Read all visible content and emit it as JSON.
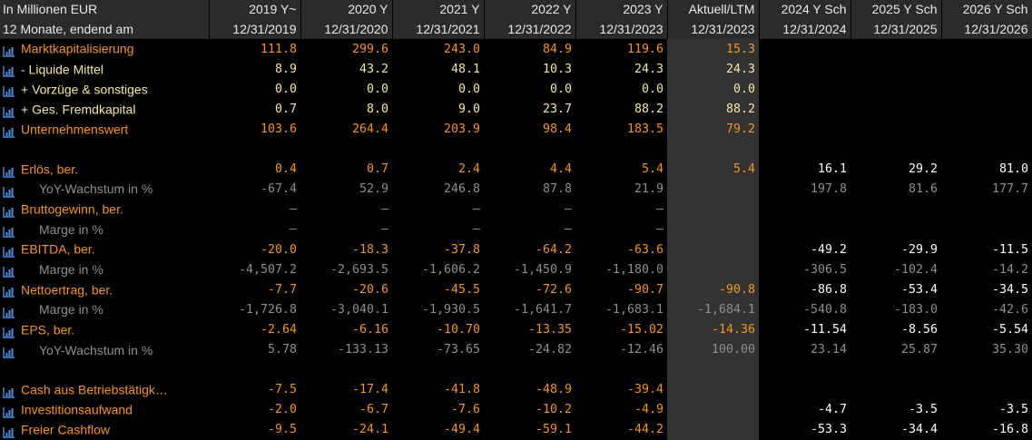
{
  "header": {
    "unit_label": "In Millionen EUR",
    "period_label": "12 Monate, endend am",
    "columns": [
      {
        "title": "2019 Y~",
        "date": "12/31/2019"
      },
      {
        "title": "2020 Y",
        "date": "12/31/2020"
      },
      {
        "title": "2021 Y",
        "date": "12/31/2021"
      },
      {
        "title": "2022 Y",
        "date": "12/31/2022"
      },
      {
        "title": "2023 Y",
        "date": "12/31/2023"
      },
      {
        "title": "Aktuell/LTM",
        "date": "12/31/2023"
      },
      {
        "title": "2024 Y Sch",
        "date": "12/31/2024"
      },
      {
        "title": "2025 Y Sch",
        "date": "12/31/2025"
      },
      {
        "title": "2026 Y Sch",
        "date": "12/31/2026"
      }
    ]
  },
  "colors": {
    "orange": "#f7941d",
    "yellow": "#f5e6a6",
    "white": "#ffffff",
    "grey": "#8f8f8f",
    "icon_blue": "#4a90e2"
  },
  "rows": [
    {
      "label": "Marktkapitalisierung",
      "style": "orange",
      "icon": "bar-chart-icon",
      "values": [
        "111.8",
        "299.6",
        "243.0",
        "84.9",
        "119.6",
        "15.3",
        "",
        "",
        ""
      ],
      "value_style": "orange"
    },
    {
      "label": "- Liquide Mittel",
      "style": "yellow",
      "icon": "bar-chart-icon",
      "values": [
        "8.9",
        "43.2",
        "48.1",
        "10.3",
        "24.3",
        "24.3",
        "",
        "",
        ""
      ],
      "value_style": "yellow"
    },
    {
      "label": "+ Vorzüge & sonstiges",
      "style": "yellow",
      "icon": "bar-chart-icon",
      "values": [
        "0.0",
        "0.0",
        "0.0",
        "0.0",
        "0.0",
        "0.0",
        "",
        "",
        ""
      ],
      "value_style": "yellow"
    },
    {
      "label": "+ Ges. Fremdkapital",
      "style": "yellow",
      "icon": "bar-chart-icon",
      "values": [
        "0.7",
        "8.0",
        "9.0",
        "23.7",
        "88.2",
        "88.2",
        "",
        "",
        ""
      ],
      "value_style": "yellow"
    },
    {
      "label": "Unternehmenswert",
      "style": "orange",
      "icon": "bar-chart-icon",
      "values": [
        "103.6",
        "264.4",
        "203.9",
        "98.4",
        "183.5",
        "79.2",
        "",
        "",
        ""
      ],
      "value_style": "orange"
    },
    {
      "blank": true
    },
    {
      "label": "Erlös, ber.",
      "style": "orange",
      "icon": "bar-chart-icon",
      "values": [
        "0.4",
        "0.7",
        "2.4",
        "4.4",
        "5.4",
        "5.4",
        "16.1",
        "29.2",
        "81.0"
      ],
      "value_style": "orange",
      "fc_style": "white"
    },
    {
      "label": "YoY-Wachstum in %",
      "style": "grey",
      "icon": "bar-chart-icon",
      "values": [
        "-67.4",
        "52.9",
        "246.8",
        "87.8",
        "21.9",
        "",
        "197.8",
        "81.6",
        "177.7"
      ],
      "value_style": "grey"
    },
    {
      "label": "Bruttogewinn, ber.",
      "style": "orange",
      "icon": "bar-chart-icon",
      "values": [
        "–",
        "–",
        "–",
        "–",
        "–",
        "",
        "",
        "",
        ""
      ],
      "value_style": "grey"
    },
    {
      "label": "Marge in %",
      "style": "grey",
      "icon": "bar-chart-icon",
      "values": [
        "–",
        "–",
        "–",
        "–",
        "–",
        "",
        "",
        "",
        ""
      ],
      "value_style": "grey"
    },
    {
      "label": "EBITDA, ber.",
      "style": "orange",
      "icon": "bar-chart-icon",
      "values": [
        "-20.0",
        "-18.3",
        "-37.8",
        "-64.2",
        "-63.6",
        "",
        "-49.2",
        "-29.9",
        "-11.5"
      ],
      "value_style": "orange",
      "fc_style": "white"
    },
    {
      "label": "Marge in %",
      "style": "grey",
      "icon": "bar-chart-icon",
      "values": [
        "-4,507.2",
        "-2,693.5",
        "-1,606.2",
        "-1,450.9",
        "-1,180.0",
        "",
        "-306.5",
        "-102.4",
        "-14.2"
      ],
      "value_style": "grey"
    },
    {
      "label": "Nettoertrag, ber.",
      "style": "orange",
      "icon": "bar-chart-icon",
      "values": [
        "-7.7",
        "-20.6",
        "-45.5",
        "-72.6",
        "-90.7",
        "-90.8",
        "-86.8",
        "-53.4",
        "-34.5"
      ],
      "value_style": "orange",
      "fc_style": "white"
    },
    {
      "label": "Marge in %",
      "style": "grey",
      "icon": "bar-chart-icon",
      "values": [
        "-1,726.8",
        "-3,040.1",
        "-1,930.5",
        "-1,641.7",
        "-1,683.1",
        "-1,684.1",
        "-540.8",
        "-183.0",
        "-42.6"
      ],
      "value_style": "grey"
    },
    {
      "label": "EPS, ber.",
      "style": "orange",
      "icon": "bar-chart-icon",
      "values": [
        "-2.64",
        "-6.16",
        "-10.70",
        "-13.35",
        "-15.02",
        "-14.36",
        "-11.54",
        "-8.56",
        "-5.54"
      ],
      "value_style": "orange",
      "fc_style": "white"
    },
    {
      "label": "YoY-Wachstum in %",
      "style": "grey",
      "icon": "bar-chart-icon",
      "values": [
        "5.78",
        "-133.13",
        "-73.65",
        "-24.82",
        "-12.46",
        "100.00",
        "23.14",
        "25.87",
        "35.30"
      ],
      "value_style": "grey"
    },
    {
      "blank": true
    },
    {
      "label": "Cash aus Betriebstätigk…",
      "style": "orange",
      "icon": "bar-chart-icon",
      "values": [
        "-7.5",
        "-17.4",
        "-41.8",
        "-48.9",
        "-39.4",
        "",
        "",
        "",
        ""
      ],
      "value_style": "orange"
    },
    {
      "label": "Investitionsaufwand",
      "style": "orange",
      "icon": "bar-chart-icon",
      "values": [
        "-2.0",
        "-6.7",
        "-7.6",
        "-10.2",
        "-4.9",
        "",
        "-4.7",
        "-3.5",
        "-3.5"
      ],
      "value_style": "orange",
      "fc_style": "white"
    },
    {
      "label": "Freier Cashflow",
      "style": "orange",
      "icon": "bar-chart-icon",
      "values": [
        "-9.5",
        "-24.1",
        "-49.4",
        "-59.1",
        "-44.2",
        "",
        "-53.3",
        "-34.4",
        "-16.8"
      ],
      "value_style": "orange",
      "fc_style": "white"
    }
  ]
}
